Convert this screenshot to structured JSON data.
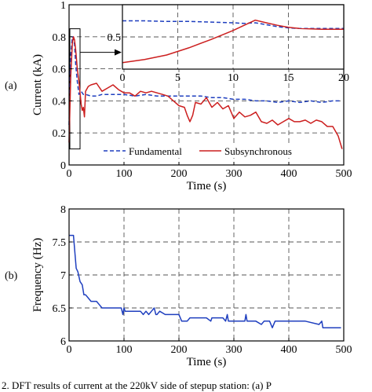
{
  "caption_fragment": "2.  DFT results of current at the 220kV side of stepup station: (a) P",
  "chart_data": [
    {
      "id": "a",
      "panel_label": "(a)",
      "type": "line",
      "xlabel": "Time (s)",
      "ylabel": "Current (kA)",
      "xlim": [
        0,
        500
      ],
      "ylim": [
        0,
        1
      ],
      "xticks": [
        0,
        100,
        200,
        300,
        400,
        500
      ],
      "yticks": [
        0,
        0.2,
        0.4,
        0.6,
        0.8,
        1
      ],
      "xtick_labels": [
        "0",
        "100",
        "200",
        "300",
        "400",
        "500"
      ],
      "ytick_labels": [
        "0",
        "0.2",
        "0.4",
        "0.6",
        "0.8",
        "1"
      ],
      "grid": "dashed",
      "legend_position": "bottom-right",
      "series": [
        {
          "name": "Fundamental",
          "color": "#1f3fbf",
          "style": "dashed",
          "x": [
            0,
            3,
            6,
            8,
            10,
            12,
            15,
            18,
            22,
            26,
            30,
            40,
            50,
            60,
            70,
            80,
            100,
            120,
            140,
            160,
            180,
            200,
            220,
            240,
            260,
            280,
            300,
            320,
            340,
            360,
            380,
            400,
            420,
            440,
            460,
            480,
            495
          ],
          "y": [
            0.25,
            0.68,
            0.8,
            0.79,
            0.75,
            0.63,
            0.52,
            0.44,
            0.46,
            0.44,
            0.44,
            0.43,
            0.43,
            0.44,
            0.44,
            0.44,
            0.44,
            0.43,
            0.44,
            0.43,
            0.43,
            0.43,
            0.43,
            0.43,
            0.42,
            0.42,
            0.41,
            0.41,
            0.4,
            0.4,
            0.39,
            0.4,
            0.39,
            0.4,
            0.39,
            0.4,
            0.4
          ]
        },
        {
          "name": "Subsynchronous",
          "color": "#cc1f1f",
          "style": "solid",
          "x": [
            0,
            3,
            6,
            8,
            10,
            12,
            15,
            18,
            20,
            22,
            24,
            26,
            28,
            30,
            35,
            40,
            50,
            60,
            70,
            80,
            90,
            100,
            110,
            120,
            130,
            140,
            150,
            160,
            170,
            180,
            190,
            200,
            210,
            215,
            220,
            225,
            230,
            240,
            250,
            260,
            270,
            280,
            290,
            300,
            310,
            320,
            330,
            340,
            350,
            360,
            370,
            380,
            390,
            400,
            410,
            420,
            430,
            440,
            450,
            460,
            470,
            480,
            490,
            497
          ],
          "y": [
            0.14,
            0.55,
            0.76,
            0.8,
            0.78,
            0.72,
            0.6,
            0.52,
            0.45,
            0.38,
            0.34,
            0.36,
            0.3,
            0.46,
            0.49,
            0.5,
            0.51,
            0.46,
            0.48,
            0.5,
            0.47,
            0.45,
            0.45,
            0.43,
            0.46,
            0.45,
            0.46,
            0.45,
            0.44,
            0.43,
            0.4,
            0.37,
            0.36,
            0.31,
            0.27,
            0.31,
            0.39,
            0.38,
            0.42,
            0.36,
            0.39,
            0.35,
            0.37,
            0.29,
            0.33,
            0.3,
            0.31,
            0.33,
            0.27,
            0.26,
            0.28,
            0.25,
            0.27,
            0.29,
            0.27,
            0.27,
            0.28,
            0.26,
            0.28,
            0.27,
            0.24,
            0.24,
            0.18,
            0.1
          ]
        }
      ],
      "inset": {
        "xlim": [
          0,
          20
        ],
        "ylim": [
          0,
          1
        ],
        "xticks": [
          0,
          5,
          10,
          15,
          20
        ],
        "xtick_labels": [
          "0",
          "5",
          "10",
          "15",
          "20"
        ],
        "ytick_labels": [
          "0",
          "0.5"
        ],
        "yticks": [
          0,
          0.5
        ],
        "grid": "dashed",
        "series": [
          {
            "name": "Fundamental",
            "x": [
              0,
              2,
              4,
              6,
              8,
              10,
              11,
              12,
              13,
              14,
              15,
              16,
              18,
              20
            ],
            "y": [
              0.75,
              0.75,
              0.74,
              0.74,
              0.73,
              0.72,
              0.71,
              0.72,
              0.69,
              0.66,
              0.64,
              0.63,
              0.63,
              0.63
            ]
          },
          {
            "name": "Subsynchronous",
            "x": [
              0,
              2,
              4,
              6,
              8,
              10,
              11,
              12,
              13,
              14,
              15,
              16,
              18,
              20
            ],
            "y": [
              0.1,
              0.15,
              0.22,
              0.33,
              0.46,
              0.6,
              0.68,
              0.76,
              0.72,
              0.68,
              0.65,
              0.63,
              0.62,
              0.62
            ]
          }
        ]
      },
      "zoom_box": {
        "x": [
          0,
          20
        ],
        "y": [
          0.1,
          0.85
        ]
      }
    },
    {
      "id": "b",
      "panel_label": "(b)",
      "type": "line",
      "xlabel": "Time (s)",
      "ylabel": "Frequency (Hz)",
      "xlim": [
        0,
        500
      ],
      "ylim": [
        6,
        8
      ],
      "xticks": [
        0,
        100,
        200,
        300,
        400,
        500
      ],
      "yticks": [
        6,
        6.5,
        7,
        7.5,
        8
      ],
      "xtick_labels": [
        "0",
        "100",
        "200",
        "300",
        "400",
        "500"
      ],
      "ytick_labels": [
        "6",
        "6.5",
        "7",
        "7.5",
        "8"
      ],
      "grid": "dashed",
      "series": [
        {
          "name": "Frequency",
          "color": "#1f3fbf",
          "style": "solid",
          "x": [
            0,
            8,
            10,
            13,
            16,
            20,
            24,
            27,
            30,
            35,
            40,
            45,
            50,
            55,
            60,
            65,
            80,
            95,
            98,
            100,
            102,
            110,
            120,
            130,
            135,
            140,
            145,
            150,
            155,
            158,
            160,
            165,
            175,
            190,
            200,
            205,
            215,
            220,
            230,
            240,
            250,
            258,
            260,
            270,
            280,
            285,
            288,
            290,
            300,
            320,
            322,
            324,
            330,
            340,
            350,
            355,
            365,
            370,
            375,
            380,
            390,
            400,
            430,
            455,
            460,
            462,
            468,
            475,
            495
          ],
          "y": [
            7.6,
            7.6,
            7.4,
            7.1,
            7.05,
            6.9,
            6.85,
            6.7,
            6.7,
            6.65,
            6.6,
            6.6,
            6.6,
            6.55,
            6.5,
            6.5,
            6.5,
            6.5,
            6.4,
            6.5,
            6.45,
            6.45,
            6.45,
            6.45,
            6.4,
            6.45,
            6.4,
            6.45,
            6.5,
            6.4,
            6.4,
            6.45,
            6.4,
            6.4,
            6.4,
            6.3,
            6.3,
            6.35,
            6.35,
            6.35,
            6.35,
            6.3,
            6.35,
            6.35,
            6.35,
            6.3,
            6.4,
            6.3,
            6.3,
            6.3,
            6.4,
            6.3,
            6.3,
            6.3,
            6.25,
            6.3,
            6.3,
            6.2,
            6.3,
            6.3,
            6.3,
            6.3,
            6.3,
            6.25,
            6.3,
            6.2,
            6.2,
            6.2,
            6.2
          ]
        }
      ]
    }
  ]
}
